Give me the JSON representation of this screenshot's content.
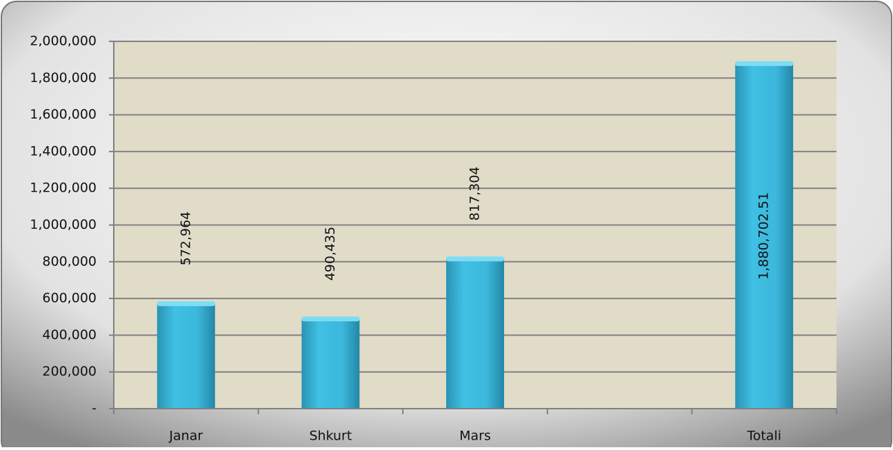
{
  "chart_data": {
    "type": "bar",
    "categories": [
      "Janar",
      "Shkurt",
      "Mars",
      null,
      "Totali"
    ],
    "values": [
      572964,
      490435,
      817304,
      null,
      1880702.51
    ],
    "value_labels": [
      "572,964",
      "490,435",
      "817,304",
      null,
      "1,880,702.51"
    ],
    "color": "#3bb8dc",
    "ylim": [
      0,
      2000000
    ],
    "yticks": [
      {
        "value": 0,
        "label": "-"
      },
      {
        "value": 200000,
        "label": "200,000"
      },
      {
        "value": 400000,
        "label": "400,000"
      },
      {
        "value": 600000,
        "label": "600,000"
      },
      {
        "value": 800000,
        "label": "800,000"
      },
      {
        "value": 1000000,
        "label": "1,000,000"
      },
      {
        "value": 1200000,
        "label": "1,200,000"
      },
      {
        "value": 1400000,
        "label": "1,400,000"
      },
      {
        "value": 1600000,
        "label": "1,600,000"
      },
      {
        "value": 1800000,
        "label": "1,800,000"
      },
      {
        "value": 2000000,
        "label": "2,000,000"
      }
    ],
    "grid": true
  }
}
